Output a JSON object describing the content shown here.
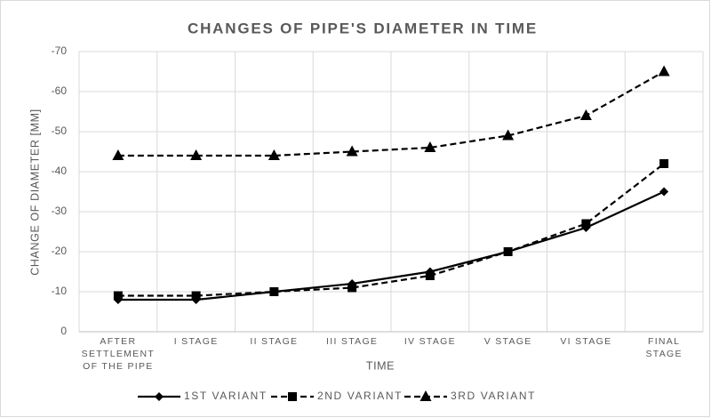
{
  "chart_data": {
    "type": "line",
    "title": "CHANGES OF PIPE'S DIAMETER IN TIME",
    "x_label": "TIME",
    "y_label": "CHANGE OF DIAMETER [MM]",
    "categories": [
      "AFTER SETTLEMENT OF THE PIPE",
      "I STAGE",
      "II STAGE",
      "III STAGE",
      "IV STAGE",
      "V STAGE",
      "VI STAGE",
      "FINAL STAGE"
    ],
    "series": [
      {
        "name": "1ST VARIANT",
        "color": "#000000",
        "dash": false,
        "marker": "diamond",
        "values": [
          -8,
          -8,
          -10,
          -12,
          -15,
          -20,
          -26,
          -35
        ]
      },
      {
        "name": "2ND VARIANT",
        "color": "#000000",
        "dash": true,
        "marker": "square",
        "values": [
          -9,
          -9,
          -10,
          -11,
          -14,
          -20,
          -27,
          -42
        ]
      },
      {
        "name": "3RD VARIANT",
        "color": "#000000",
        "dash": true,
        "marker": "triangle",
        "values": [
          -44,
          -44,
          -44,
          -45,
          -46,
          -49,
          -54,
          -65
        ]
      }
    ],
    "ylim": [
      0,
      -70
    ],
    "yticks": [
      0,
      -10,
      -20,
      -30,
      -40,
      -50,
      -60,
      -70
    ],
    "grid": true,
    "legend": "bottom"
  }
}
